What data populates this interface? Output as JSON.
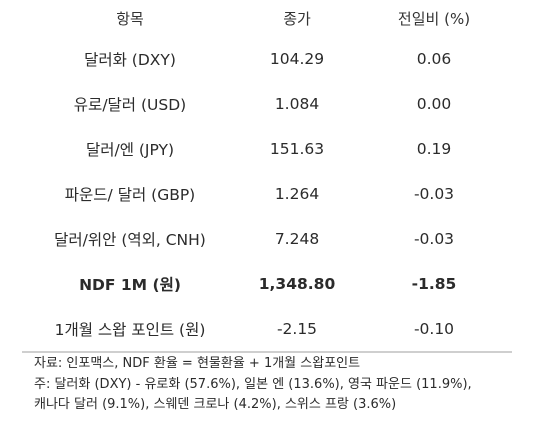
{
  "table": {
    "headers": {
      "item": "항목",
      "close": "종가",
      "change": "전일비 (%)"
    },
    "rows": [
      {
        "item": "달러화 (DXY)",
        "close": "104.29",
        "change": "0.06"
      },
      {
        "item": "유로/달러 (USD)",
        "close": "1.084",
        "change": "0.00"
      },
      {
        "item": "달러/엔 (JPY)",
        "close": "151.63",
        "change": "0.19"
      },
      {
        "item": "파운드/ 달러 (GBP)",
        "close": "1.264",
        "change": "-0.03"
      },
      {
        "item": "달러/위안 (역외, CNH)",
        "close": "7.248",
        "change": "-0.03"
      },
      {
        "item": "NDF 1M (원)",
        "close": "1,348.80",
        "change": "-1.85"
      },
      {
        "item": "1개월 스왑 포인트 (원)",
        "close": "-2.15",
        "change": "-0.10"
      }
    ]
  },
  "notes": {
    "source": "자료: 인포맥스, NDF 환율 = 현물환율 + 1개월 스왑포인트",
    "footnote_line1": "주: 달러화 (DXY) - 유로화 (57.6%), 일본 엔 (13.6%), 영국 파운드 (11.9%),",
    "footnote_line2": "캐나다 달러 (9.1%), 스웨덴 크로나 (4.2%), 스위스 프랑 (3.6%)"
  }
}
